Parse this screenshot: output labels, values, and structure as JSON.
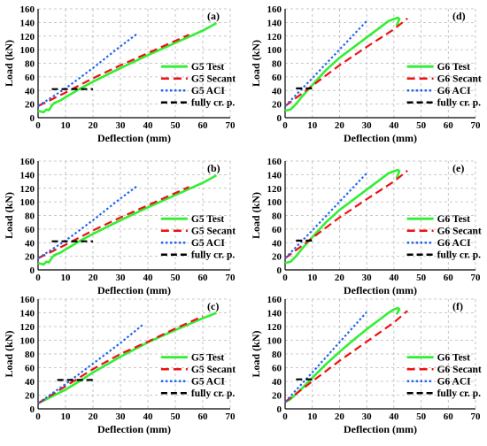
{
  "figure": {
    "title": ""
  },
  "style": {
    "test_color": "#33ee33",
    "secant_color": "#ee1111",
    "aci_color": "#2266ee",
    "fully_color": "#000000",
    "grid_color": "#b8b8b8"
  },
  "chart_data": [
    {
      "type": "line",
      "panel_label": "(a)",
      "xlabel": "Deflection (mm)",
      "ylabel": "Load (kN)",
      "xlim": [
        0,
        70
      ],
      "ylim": [
        0,
        160
      ],
      "xticks": [
        0,
        10,
        20,
        30,
        40,
        50,
        60,
        70
      ],
      "yticks": [
        0,
        20,
        40,
        60,
        80,
        100,
        120,
        140,
        160
      ],
      "grid": true,
      "legend_position": "right",
      "series": [
        {
          "name": "G5 Test",
          "style": "solid",
          "x": [
            0,
            2,
            3,
            4,
            5,
            6,
            8,
            10,
            15,
            20,
            30,
            40,
            50,
            60,
            65
          ],
          "y": [
            10,
            8,
            12,
            11,
            18,
            22,
            25,
            30,
            42,
            53,
            73,
            92,
            110,
            128,
            139
          ]
        },
        {
          "name": "G5 Secant",
          "style": "dashed",
          "x": [
            0,
            10,
            20,
            30,
            40,
            50,
            55
          ],
          "y": [
            17,
            37,
            58,
            77,
            95,
            113,
            122
          ]
        },
        {
          "name": "G5 ACI",
          "style": "dotted",
          "x": [
            0,
            10,
            20,
            30,
            36
          ],
          "y": [
            17,
            43,
            73,
            105,
            123
          ]
        },
        {
          "name": "fully cr. p.",
          "style": "dashed-thick",
          "x": [
            5,
            20
          ],
          "y": [
            42,
            42
          ]
        }
      ]
    },
    {
      "type": "line",
      "panel_label": "(d)",
      "xlabel": "Deflection (mm)",
      "ylabel": "Load (kN)",
      "xlim": [
        0,
        70
      ],
      "ylim": [
        0,
        160
      ],
      "xticks": [
        0,
        10,
        20,
        30,
        40,
        50,
        60,
        70
      ],
      "yticks": [
        0,
        20,
        40,
        60,
        80,
        100,
        120,
        140,
        160
      ],
      "grid": true,
      "legend_position": "right",
      "series": [
        {
          "name": "G6 Test",
          "style": "solid",
          "x": [
            0,
            2,
            4,
            6,
            10,
            15,
            20,
            25,
            30,
            35,
            38,
            40,
            41.5,
            42,
            41
          ],
          "y": [
            10,
            12,
            20,
            30,
            48,
            70,
            88,
            103,
            118,
            133,
            142,
            145,
            147,
            145,
            135
          ]
        },
        {
          "name": "G6 Secant",
          "style": "dashed",
          "x": [
            0,
            10,
            20,
            30,
            40,
            45
          ],
          "y": [
            17,
            47,
            77,
            104,
            130,
            146
          ]
        },
        {
          "name": "G6 ACI",
          "style": "dotted",
          "x": [
            0,
            10,
            20,
            30
          ],
          "y": [
            17,
            58,
            100,
            142
          ]
        },
        {
          "name": "fully cr. p.",
          "style": "dashed-thick",
          "x": [
            4,
            10
          ],
          "y": [
            43,
            43
          ]
        }
      ]
    },
    {
      "type": "line",
      "panel_label": "(b)",
      "xlabel": "Deflection (mm)",
      "ylabel": "Load (kN)",
      "xlim": [
        0,
        70
      ],
      "ylim": [
        0,
        160
      ],
      "xticks": [
        0,
        10,
        20,
        30,
        40,
        50,
        60,
        70
      ],
      "yticks": [
        0,
        20,
        40,
        60,
        80,
        100,
        120,
        140,
        160
      ],
      "grid": true,
      "legend_position": "right",
      "series": [
        {
          "name": "G5 Test",
          "style": "solid",
          "x": [
            0,
            2,
            3,
            4,
            5,
            6,
            8,
            10,
            15,
            20,
            30,
            40,
            50,
            60,
            65
          ],
          "y": [
            10,
            8,
            12,
            11,
            18,
            22,
            25,
            30,
            42,
            53,
            73,
            92,
            110,
            128,
            139
          ]
        },
        {
          "name": "G5 Secant",
          "style": "dashed",
          "x": [
            0,
            10,
            20,
            30,
            40,
            50,
            55
          ],
          "y": [
            17,
            37,
            58,
            77,
            95,
            113,
            122
          ]
        },
        {
          "name": "G5 ACI",
          "style": "dotted",
          "x": [
            0,
            10,
            20,
            30,
            36
          ],
          "y": [
            17,
            43,
            73,
            105,
            123
          ]
        },
        {
          "name": "fully cr. p.",
          "style": "dashed-thick",
          "x": [
            5,
            20
          ],
          "y": [
            42,
            42
          ]
        }
      ]
    },
    {
      "type": "line",
      "panel_label": "(e)",
      "xlabel": "Deflection (mm)",
      "ylabel": "Load (kN)",
      "xlim": [
        0,
        70
      ],
      "ylim": [
        0,
        160
      ],
      "xticks": [
        0,
        10,
        20,
        30,
        40,
        50,
        60,
        70
      ],
      "yticks": [
        0,
        20,
        40,
        60,
        80,
        100,
        120,
        140,
        160
      ],
      "grid": true,
      "legend_position": "right",
      "series": [
        {
          "name": "G6 Test",
          "style": "solid",
          "x": [
            0,
            2,
            4,
            6,
            10,
            15,
            20,
            25,
            30,
            35,
            38,
            40,
            41.5,
            42,
            41
          ],
          "y": [
            10,
            12,
            20,
            30,
            48,
            70,
            88,
            103,
            118,
            133,
            142,
            145,
            147,
            145,
            135
          ]
        },
        {
          "name": "G6 Secant",
          "style": "dashed",
          "x": [
            0,
            10,
            20,
            30,
            40,
            45
          ],
          "y": [
            17,
            47,
            77,
            104,
            130,
            146
          ]
        },
        {
          "name": "G6 ACI",
          "style": "dotted",
          "x": [
            0,
            10,
            20,
            30
          ],
          "y": [
            17,
            58,
            100,
            142
          ]
        },
        {
          "name": "fully cr. p.",
          "style": "dashed-thick",
          "x": [
            4,
            10
          ],
          "y": [
            43,
            43
          ]
        }
      ]
    },
    {
      "type": "line",
      "panel_label": "(c)",
      "xlabel": "Deflection (mm)",
      "ylabel": "Load (kN)",
      "xlim": [
        0,
        70
      ],
      "ylim": [
        0,
        160
      ],
      "xticks": [
        0,
        10,
        20,
        30,
        40,
        50,
        60,
        70
      ],
      "yticks": [
        0,
        20,
        40,
        60,
        80,
        100,
        120,
        140,
        160
      ],
      "grid": true,
      "legend_position": "right",
      "series": [
        {
          "name": "G5 Test",
          "style": "solid",
          "x": [
            0,
            2,
            5,
            10,
            15,
            20,
            30,
            40,
            50,
            60,
            65
          ],
          "y": [
            8,
            12,
            18,
            28,
            40,
            53,
            76,
            97,
            115,
            132,
            140
          ]
        },
        {
          "name": "G5 Secant",
          "style": "dashed",
          "x": [
            0,
            10,
            20,
            30,
            40,
            50,
            60
          ],
          "y": [
            8,
            33,
            58,
            80,
            98,
            117,
            135
          ]
        },
        {
          "name": "G5 ACI",
          "style": "dotted",
          "x": [
            0,
            10,
            20,
            30,
            38
          ],
          "y": [
            8,
            36,
            66,
            96,
            122
          ]
        },
        {
          "name": "fully cr. p.",
          "style": "dashed-thick",
          "x": [
            7,
            20
          ],
          "y": [
            42,
            42
          ]
        }
      ]
    },
    {
      "type": "line",
      "panel_label": "(f)",
      "xlabel": "Deflection (mm)",
      "ylabel": "Load (kN)",
      "xlim": [
        0,
        70
      ],
      "ylim": [
        0,
        160
      ],
      "xticks": [
        0,
        10,
        20,
        30,
        40,
        50,
        60,
        70
      ],
      "yticks": [
        0,
        20,
        40,
        60,
        80,
        100,
        120,
        140,
        160
      ],
      "grid": true,
      "legend_position": "right",
      "series": [
        {
          "name": "G6 Test",
          "style": "solid",
          "x": [
            0,
            2,
            5,
            10,
            15,
            20,
            25,
            30,
            35,
            38,
            40,
            41.5,
            42,
            41
          ],
          "y": [
            10,
            14,
            25,
            45,
            65,
            83,
            100,
            116,
            131,
            140,
            145,
            147,
            145,
            138
          ]
        },
        {
          "name": "G6 Secant",
          "style": "dashed",
          "x": [
            0,
            10,
            20,
            30,
            40,
            45
          ],
          "y": [
            10,
            40,
            70,
            98,
            126,
            143
          ]
        },
        {
          "name": "G6 ACI",
          "style": "dotted",
          "x": [
            0,
            10,
            20,
            30
          ],
          "y": [
            10,
            53,
            97,
            141
          ]
        },
        {
          "name": "fully cr. p.",
          "style": "dashed-thick",
          "x": [
            4,
            10
          ],
          "y": [
            43,
            43
          ]
        }
      ]
    }
  ]
}
